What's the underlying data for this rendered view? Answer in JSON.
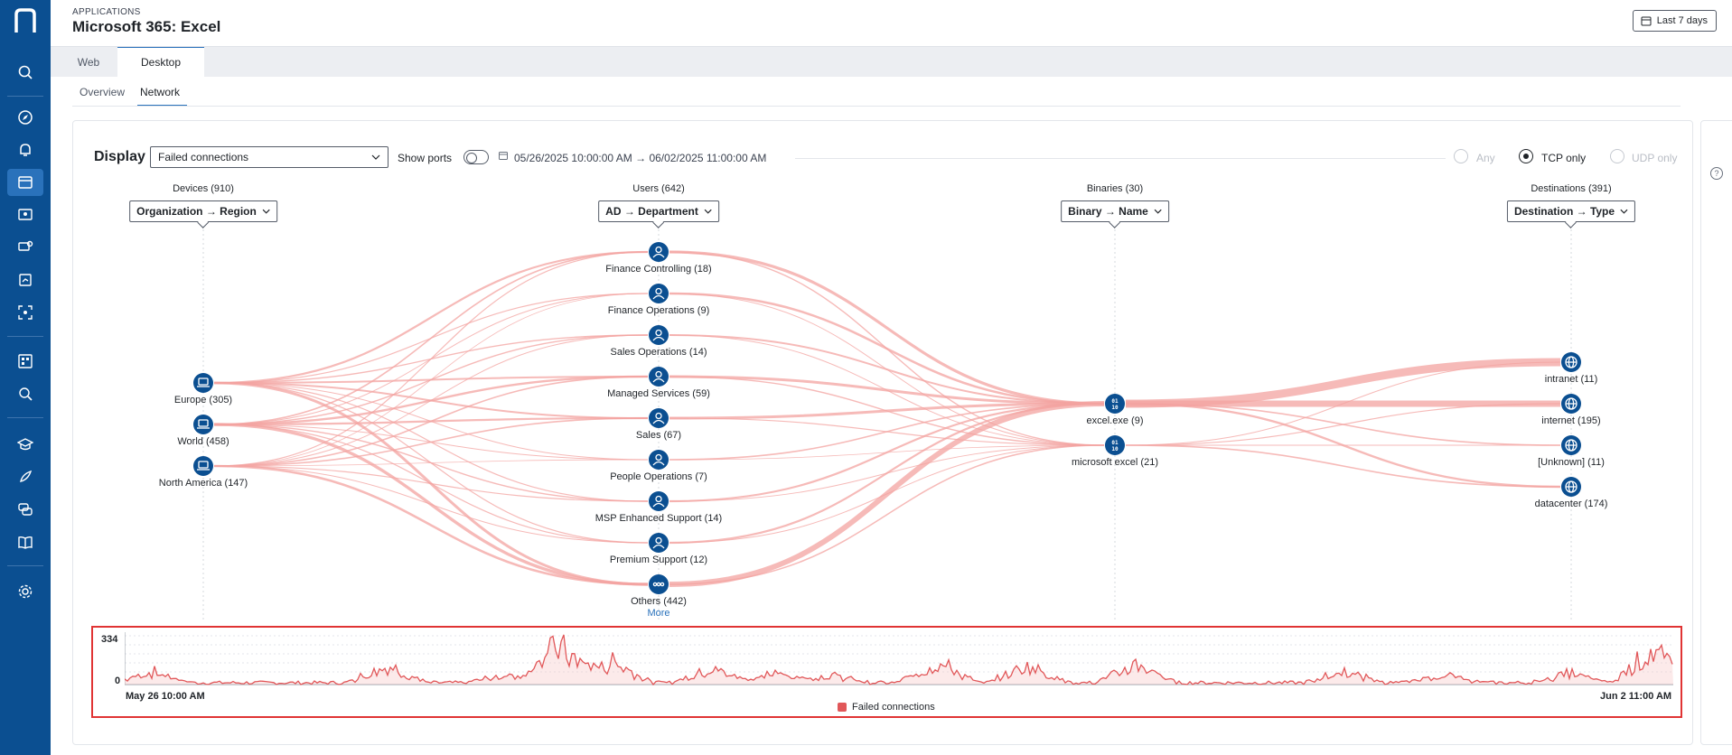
{
  "header": {
    "breadcrumb": "APPLICATIONS",
    "title": "Microsoft 365: Excel",
    "range_button": "Last 7 days"
  },
  "tabs": [
    {
      "label": "Web"
    },
    {
      "label": "Desktop",
      "active": true
    }
  ],
  "subtabs": [
    {
      "label": "Overview"
    },
    {
      "label": "Network",
      "active": true
    }
  ],
  "toolbar": {
    "display_label": "Display",
    "display_value": "Failed connections",
    "show_ports_label": "Show ports",
    "show_ports_on": false,
    "date_range": "05/26/2025 10:00:00 AM → 06/02/2025 11:00:00 AM",
    "protocols": [
      {
        "label": "Any",
        "selected": false
      },
      {
        "label": "TCP only",
        "selected": true
      },
      {
        "label": "UDP only",
        "selected": false
      }
    ]
  },
  "columns": [
    {
      "title": "Devices (910)",
      "group": "Organization → Region"
    },
    {
      "title": "Users (642)",
      "group": "AD → Department"
    },
    {
      "title": "Binaries (30)",
      "group": "Binary → Name"
    },
    {
      "title": "Destinations (391)",
      "group": "Destination → Type"
    }
  ],
  "devices": [
    {
      "label": "Europe (305)"
    },
    {
      "label": "World (458)"
    },
    {
      "label": "North America (147)"
    }
  ],
  "users": [
    {
      "label": "Finance Controlling (18)"
    },
    {
      "label": "Finance Operations (9)"
    },
    {
      "label": "Sales Operations (14)"
    },
    {
      "label": "Managed Services (59)"
    },
    {
      "label": "Sales (67)"
    },
    {
      "label": "People Operations (7)"
    },
    {
      "label": "MSP Enhanced Support (14)"
    },
    {
      "label": "Premium Support (12)"
    },
    {
      "label": "Others (442)"
    }
  ],
  "more_link": "More",
  "binaries": [
    {
      "label": "excel.exe (9)"
    },
    {
      "label": "microsoft excel (21)"
    }
  ],
  "destinations": [
    {
      "label": "intranet (11)"
    },
    {
      "label": "internet (195)"
    },
    {
      "label": "[Unknown] (11)"
    },
    {
      "label": "datacenter (174)"
    }
  ],
  "timeline": {
    "y_max": "334",
    "y_min": "0",
    "start_label": "May 26 10:00 AM",
    "end_label": "Jun 2 11:00 AM",
    "legend": "Failed connections",
    "color": "#e15759"
  },
  "colors": {
    "accent": "#0b4f91",
    "link": "#f3a3a0"
  }
}
